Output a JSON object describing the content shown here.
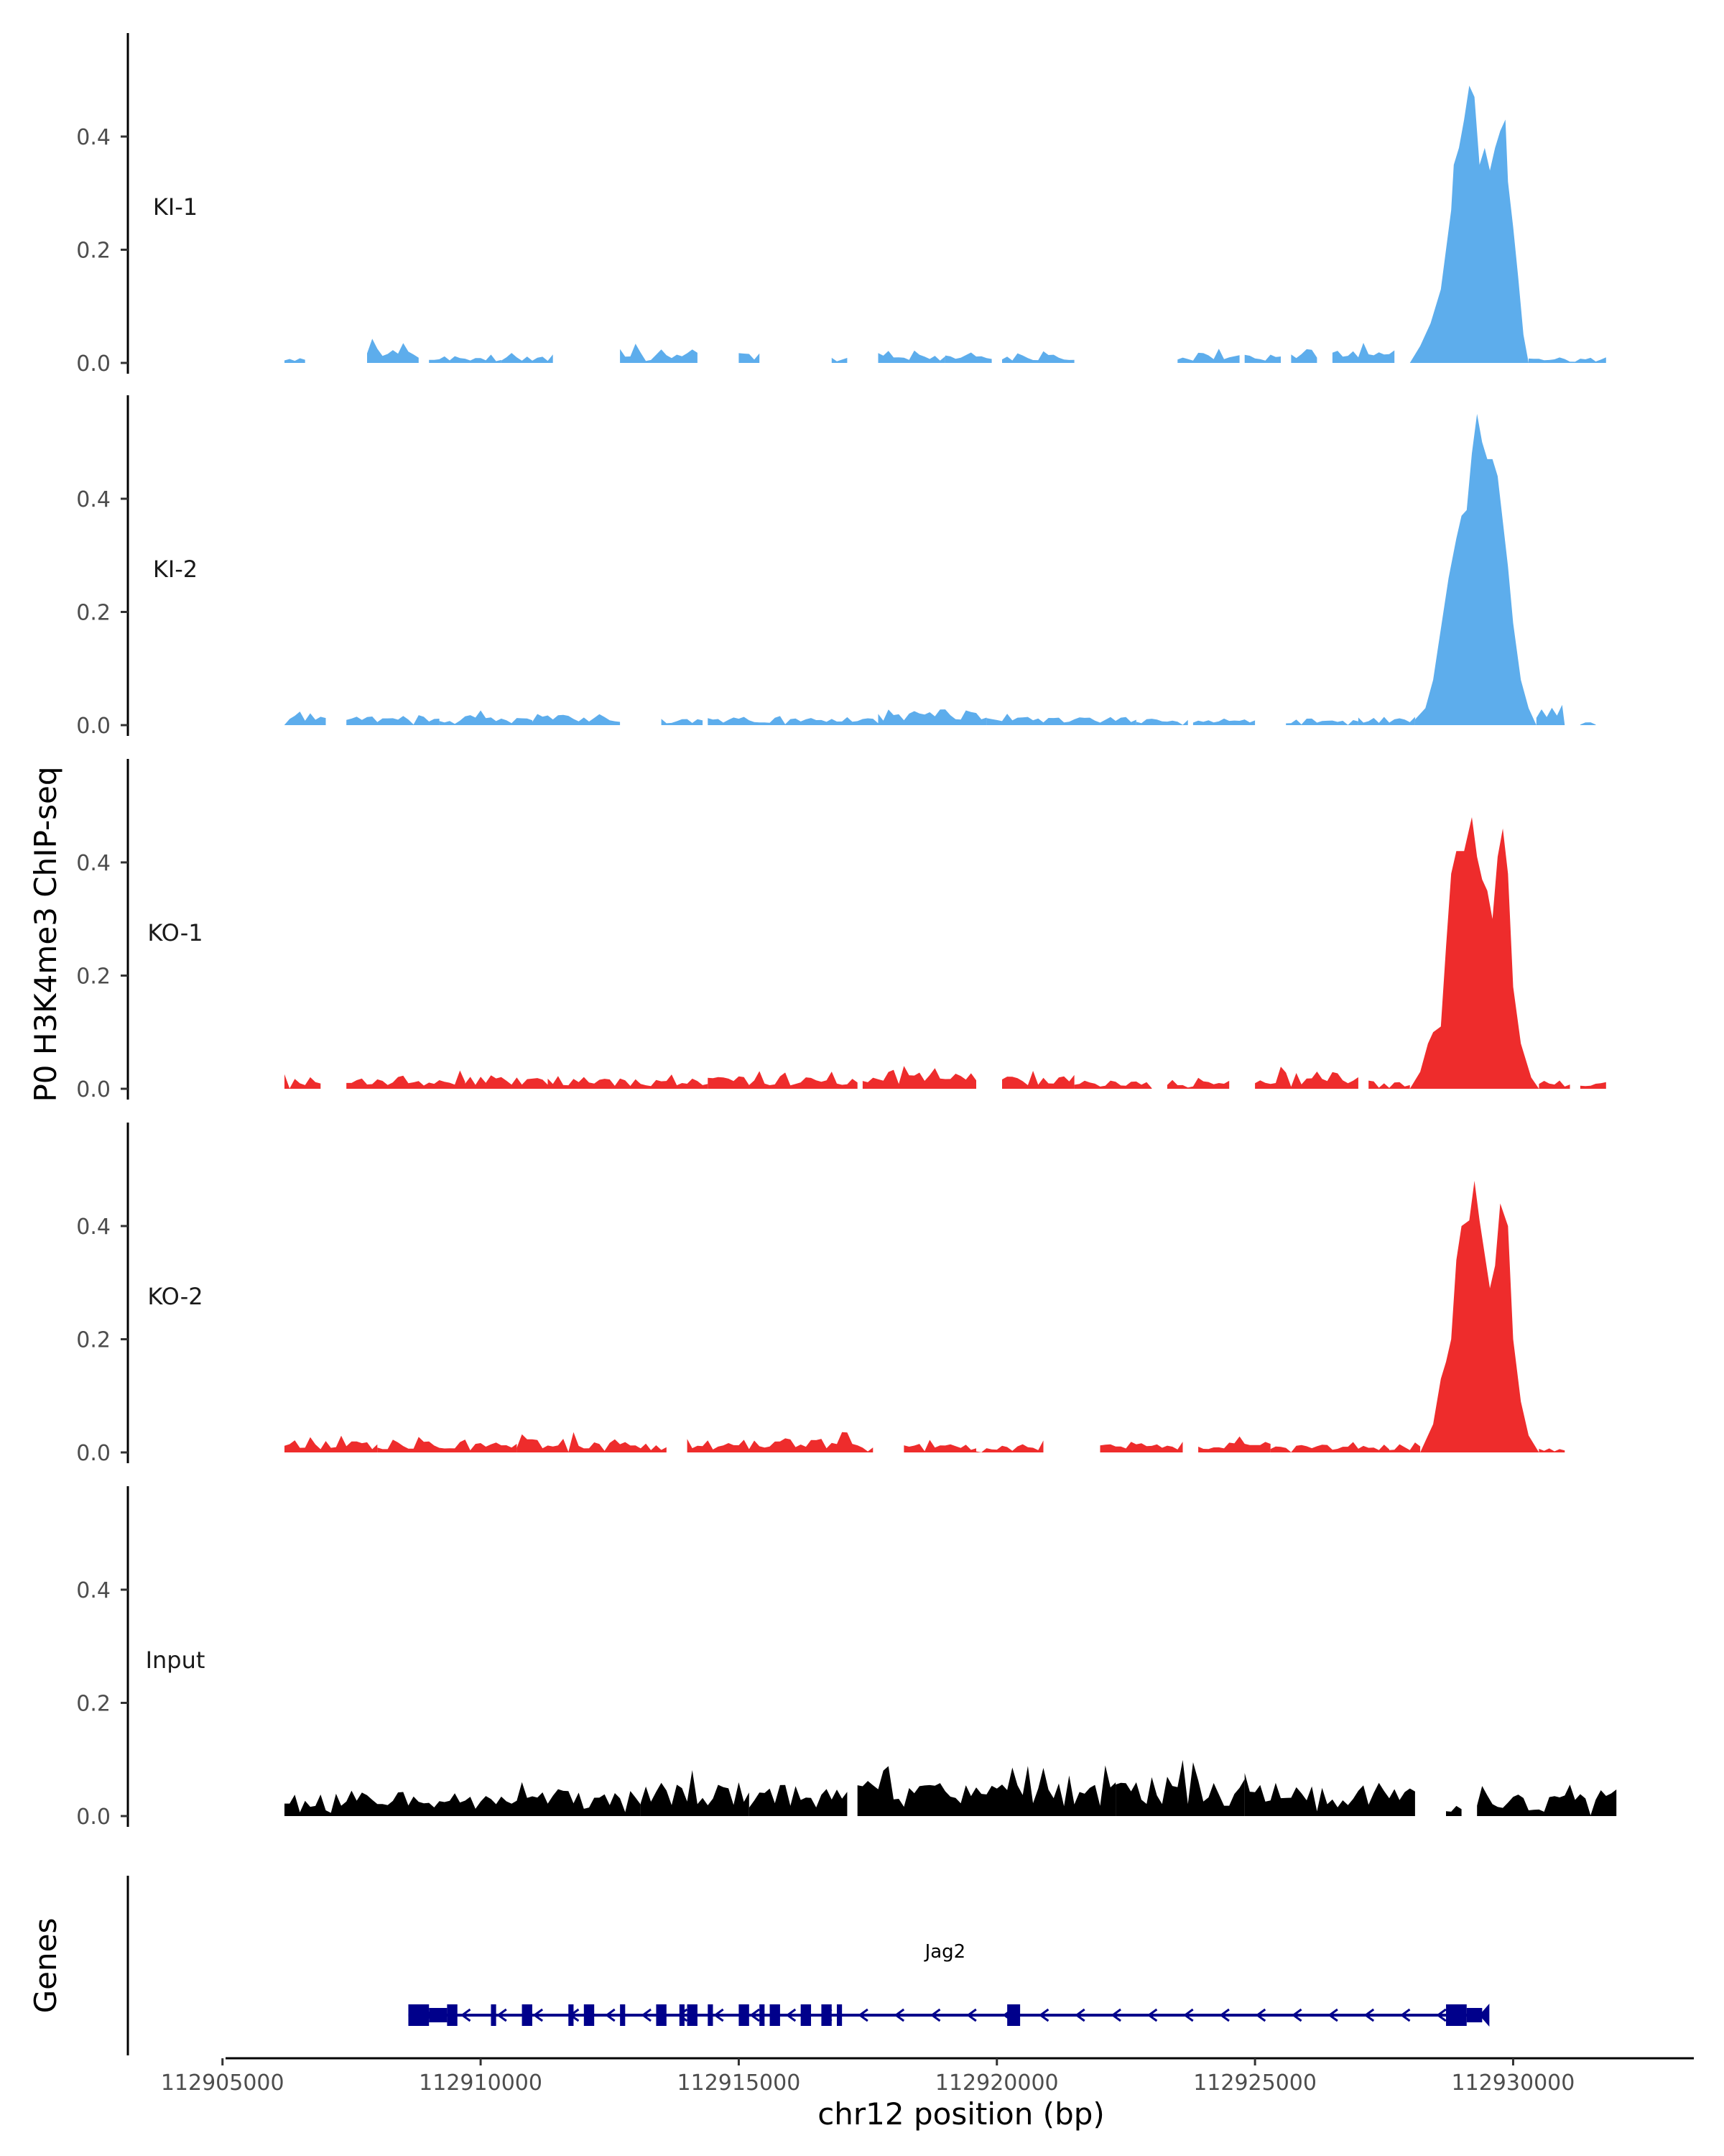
{
  "chart_data": {
    "type": "area",
    "ylabel": "P0 H3K4me3 ChIP-seq",
    "xlabel": "chr12 position (bp)",
    "genes_label": "Genes",
    "xlim": [
      112903000,
      112933500
    ],
    "ylim": [
      0,
      0.58
    ],
    "yticks": [
      0.0,
      0.2,
      0.4
    ],
    "ytick_labels": [
      "0.0",
      "0.2",
      "0.4"
    ],
    "xticks": [
      112905000,
      112910000,
      112915000,
      112920000,
      112925000,
      112930000
    ],
    "xtick_labels": [
      "112905000",
      "112910000",
      "112915000",
      "112920000",
      "112925000",
      "112930000"
    ],
    "tracks": [
      {
        "name": "KI-1",
        "color": "#5DADEC",
        "step": 100,
        "bg": [
          [
            112906200,
            112906600,
            0.012,
            1
          ],
          [
            112907800,
            112908800,
            0.03,
            2
          ],
          [
            112909000,
            112910400,
            0.012,
            3
          ],
          [
            112910400,
            112911400,
            0.012,
            4
          ],
          [
            112912700,
            112914200,
            0.025,
            5
          ],
          [
            112915000,
            112915400,
            0.02,
            6
          ],
          [
            112916800,
            112917100,
            0.012,
            7
          ],
          [
            112917700,
            112919000,
            0.015,
            8
          ],
          [
            112919000,
            112919900,
            0.025,
            9
          ],
          [
            112920100,
            112921500,
            0.015,
            10
          ],
          [
            112923500,
            112924700,
            0.02,
            11
          ],
          [
            112924800,
            112925500,
            0.015,
            12
          ],
          [
            112925700,
            112926200,
            0.018,
            13
          ],
          [
            112926500,
            112927700,
            0.025,
            14
          ]
        ],
        "peak": [
          [
            112928000,
            0.0
          ],
          [
            112928200,
            0.03
          ],
          [
            112928400,
            0.07
          ],
          [
            112928600,
            0.13
          ],
          [
            112928700,
            0.2
          ],
          [
            112928800,
            0.27
          ],
          [
            112928850,
            0.35
          ],
          [
            112928950,
            0.38
          ],
          [
            112929050,
            0.43
          ],
          [
            112929150,
            0.49
          ],
          [
            112929250,
            0.47
          ],
          [
            112929350,
            0.35
          ],
          [
            112929450,
            0.38
          ],
          [
            112929550,
            0.34
          ],
          [
            112929650,
            0.38
          ],
          [
            112929750,
            0.41
          ],
          [
            112929850,
            0.43
          ],
          [
            112929900,
            0.32
          ],
          [
            112930000,
            0.24
          ],
          [
            112930100,
            0.15
          ],
          [
            112930200,
            0.05
          ],
          [
            112930300,
            0.0
          ]
        ],
        "tail": [
          [
            112930300,
            112931800,
            0.01,
            15
          ]
        ]
      },
      {
        "name": "KI-2",
        "color": "#5DADEC",
        "step": 100,
        "bg": [
          [
            112906200,
            112907000,
            0.025,
            21
          ],
          [
            112907400,
            112909200,
            0.018,
            22
          ],
          [
            112909200,
            112911000,
            0.018,
            23
          ],
          [
            112911000,
            112912700,
            0.02,
            24
          ],
          [
            112913500,
            112914300,
            0.012,
            25
          ],
          [
            112914400,
            112917700,
            0.015,
            26
          ],
          [
            112917700,
            112919800,
            0.028,
            27
          ],
          [
            112919800,
            112922700,
            0.015,
            28
          ],
          [
            112922700,
            112923700,
            0.012,
            29
          ],
          [
            112923800,
            112925000,
            0.012,
            30
          ],
          [
            112925600,
            112927000,
            0.012,
            31
          ],
          [
            112927000,
            112928100,
            0.015,
            32
          ]
        ],
        "peak": [
          [
            112928100,
            0.01
          ],
          [
            112928300,
            0.03
          ],
          [
            112928450,
            0.08
          ],
          [
            112928550,
            0.14
          ],
          [
            112928650,
            0.2
          ],
          [
            112928750,
            0.26
          ],
          [
            112928900,
            0.33
          ],
          [
            112929000,
            0.37
          ],
          [
            112929100,
            0.38
          ],
          [
            112929200,
            0.48
          ],
          [
            112929300,
            0.55
          ],
          [
            112929400,
            0.5
          ],
          [
            112929500,
            0.47
          ],
          [
            112929600,
            0.47
          ],
          [
            112929700,
            0.44
          ],
          [
            112929800,
            0.36
          ],
          [
            112929900,
            0.28
          ],
          [
            112930000,
            0.18
          ],
          [
            112930150,
            0.08
          ],
          [
            112930300,
            0.03
          ],
          [
            112930450,
            0.0
          ]
        ],
        "tail": [
          [
            112930450,
            112931000,
            0.04,
            33
          ],
          [
            112931300,
            112931600,
            0.005,
            34
          ]
        ]
      },
      {
        "name": "KO-1",
        "color": "#EE2C2C",
        "step": 100,
        "bg": [
          [
            112906200,
            112906900,
            0.022,
            41
          ],
          [
            112907400,
            112909700,
            0.022,
            42
          ],
          [
            112909700,
            112911300,
            0.025,
            43
          ],
          [
            112911300,
            112914400,
            0.018,
            44
          ],
          [
            112914400,
            112917300,
            0.022,
            45
          ],
          [
            112917400,
            112919600,
            0.03,
            46
          ],
          [
            112920100,
            112921500,
            0.025,
            47
          ],
          [
            112921500,
            112923000,
            0.015,
            48
          ],
          [
            112923300,
            112924500,
            0.015,
            49
          ],
          [
            112925000,
            112927000,
            0.03,
            50
          ],
          [
            112927200,
            112928000,
            0.015,
            51
          ]
        ],
        "peak": [
          [
            112928000,
            0.0
          ],
          [
            112928200,
            0.03
          ],
          [
            112928350,
            0.08
          ],
          [
            112928450,
            0.1
          ],
          [
            112928600,
            0.11
          ],
          [
            112928700,
            0.25
          ],
          [
            112928800,
            0.38
          ],
          [
            112928900,
            0.42
          ],
          [
            112929050,
            0.42
          ],
          [
            112929200,
            0.48
          ],
          [
            112929300,
            0.41
          ],
          [
            112929400,
            0.37
          ],
          [
            112929500,
            0.35
          ],
          [
            112929600,
            0.3
          ],
          [
            112929700,
            0.41
          ],
          [
            112929800,
            0.46
          ],
          [
            112929900,
            0.38
          ],
          [
            112930000,
            0.18
          ],
          [
            112930150,
            0.08
          ],
          [
            112930350,
            0.02
          ],
          [
            112930500,
            0.0
          ]
        ],
        "tail": [
          [
            112930500,
            112931100,
            0.015,
            52
          ],
          [
            112931300,
            112931800,
            0.012,
            53
          ]
        ]
      },
      {
        "name": "KO-2",
        "color": "#EE2C2C",
        "step": 100,
        "bg": [
          [
            112906200,
            112908000,
            0.022,
            61
          ],
          [
            112908000,
            112910700,
            0.02,
            62
          ],
          [
            112910700,
            112913600,
            0.025,
            63
          ],
          [
            112914000,
            112917600,
            0.025,
            64
          ],
          [
            112918200,
            112919600,
            0.015,
            65
          ],
          [
            112919600,
            112920900,
            0.015,
            66
          ],
          [
            112922000,
            112923600,
            0.02,
            67
          ],
          [
            112923900,
            112925300,
            0.02,
            68
          ],
          [
            112925300,
            112927600,
            0.015,
            69
          ],
          [
            112927600,
            112928200,
            0.015,
            70
          ]
        ],
        "peak": [
          [
            112928200,
            0.0
          ],
          [
            112928300,
            0.02
          ],
          [
            112928450,
            0.05
          ],
          [
            112928600,
            0.13
          ],
          [
            112928700,
            0.16
          ],
          [
            112928800,
            0.2
          ],
          [
            112928900,
            0.34
          ],
          [
            112929000,
            0.4
          ],
          [
            112929150,
            0.41
          ],
          [
            112929250,
            0.48
          ],
          [
            112929350,
            0.41
          ],
          [
            112929450,
            0.35
          ],
          [
            112929550,
            0.29
          ],
          [
            112929650,
            0.33
          ],
          [
            112929750,
            0.44
          ],
          [
            112929900,
            0.4
          ],
          [
            112930000,
            0.2
          ],
          [
            112930150,
            0.09
          ],
          [
            112930300,
            0.03
          ],
          [
            112930500,
            0.0
          ]
        ],
        "tail": [
          [
            112930500,
            112931000,
            0.008,
            71
          ]
        ]
      },
      {
        "name": "Input",
        "color": "#000000",
        "step": 100,
        "bg": [
          [
            112906200,
            112913100,
            0.045,
            81
          ],
          [
            112913100,
            112915200,
            0.06,
            82
          ],
          [
            112915200,
            112917100,
            0.055,
            83
          ],
          [
            112917300,
            112922300,
            0.06,
            84
          ],
          [
            112922300,
            112924800,
            0.07,
            85
          ],
          [
            112924800,
            112928100,
            0.06,
            86
          ],
          [
            112928700,
            112929000,
            0.015,
            87
          ],
          [
            112929300,
            112932000,
            0.04,
            88
          ]
        ],
        "peak": [],
        "tail": []
      }
    ],
    "gene": {
      "name": "Jag2",
      "strand": "-",
      "start": 112908600,
      "end": 112929400,
      "exons": [
        [
          112908600,
          112909000
        ],
        [
          112909350,
          112909550
        ],
        [
          112910200,
          112910300
        ],
        [
          112910800,
          112911000
        ],
        [
          112911700,
          112911800
        ],
        [
          112912000,
          112912200
        ],
        [
          112912700,
          112912800
        ],
        [
          112913400,
          112913600
        ],
        [
          112913850,
          112913950
        ],
        [
          112914000,
          112914200
        ],
        [
          112914400,
          112914500
        ],
        [
          112915000,
          112915200
        ],
        [
          112915400,
          112915500
        ],
        [
          112915600,
          112915800
        ],
        [
          112916200,
          112916400
        ],
        [
          112916600,
          112916800
        ],
        [
          112916900,
          112917000
        ],
        [
          112920200,
          112920450
        ],
        [
          112928700,
          112929100
        ]
      ],
      "utrs": [
        [
          112909000,
          112909350
        ],
        [
          112929100,
          112929400
        ]
      ]
    }
  }
}
